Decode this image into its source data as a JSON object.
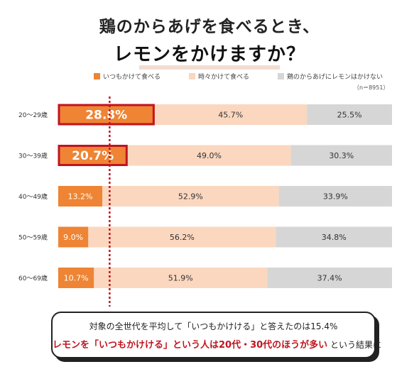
{
  "title_line1": "鶏のからあげを食べるとき、",
  "title_line2": "レモンをかけますか？",
  "legend": [
    {
      "label": "いつもかけて食べる",
      "color": "#ee8434"
    },
    {
      "label": "時々かけて食べる",
      "color": "#fbd7bf"
    },
    {
      "label": "鶏のからあげにレモンはかけない",
      "color": "#d6d6d6"
    }
  ],
  "sample_note": "（n＝8951）",
  "chart_data": {
    "type": "bar",
    "orientation": "horizontal",
    "stacked": true,
    "categories": [
      "20〜29歳",
      "30〜39歳",
      "40〜49歳",
      "50〜59歳",
      "60〜69歳"
    ],
    "series": [
      {
        "name": "いつもかけて食べる",
        "values": [
          28.8,
          20.7,
          13.2,
          9.0,
          10.7
        ],
        "labels": [
          "28.8%",
          "20.7%",
          "13.2%",
          "9.0%",
          "10.7%"
        ]
      },
      {
        "name": "時々かけて食べる",
        "values": [
          45.7,
          49.0,
          52.9,
          56.2,
          51.9
        ],
        "labels": [
          "45.7%",
          "49.0%",
          "52.9%",
          "56.2%",
          "51.9%"
        ]
      },
      {
        "name": "鶏のからあげにレモンはかけない",
        "values": [
          25.5,
          30.3,
          33.9,
          34.8,
          37.4
        ],
        "labels": [
          "25.5%",
          "30.3%",
          "33.9%",
          "34.8%",
          "37.4%"
        ]
      }
    ],
    "xlim": [
      0,
      100
    ],
    "average_line": 15.4,
    "highlighted_categories": [
      "20〜29歳",
      "30〜39歳"
    ],
    "colors": {
      "always": "#ee8434",
      "sometimes": "#fbd7bf",
      "never": "#d6d6d6",
      "highlight_border": "#c0141e",
      "average_line": "#c0141e"
    }
  },
  "callout": {
    "line1": "対象の全世代を平均して「いつもかけける」と答えたのは15.4%",
    "line2_emphasis": "レモンを「いつもかけける」という人は20代・30代のほうが多い",
    "line2_suffix": " という結果に"
  }
}
